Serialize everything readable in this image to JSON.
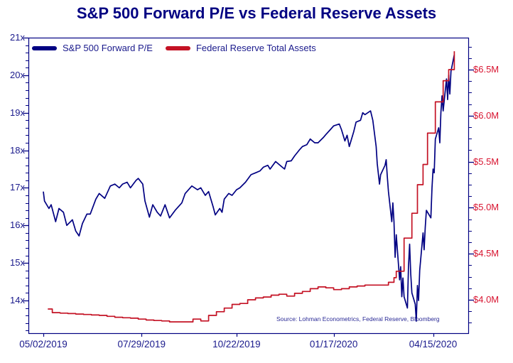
{
  "title": "S&P 500 Forward P/E vs Federal Reserve Assets",
  "source_note": "Source: Lohman Econometrics, Federal Reserve, Bloomberg",
  "colors": {
    "navy": "#000082",
    "red": "#c41224",
    "axis_text_navy": "#1a1a8c",
    "axis_text_red": "#d81430",
    "background": "#ffffff"
  },
  "legend": [
    {
      "label": "S&P 500 Forward P/E",
      "color": "#000082"
    },
    {
      "label": "Federal Reserve Total Assets",
      "color": "#c41224"
    }
  ],
  "chart_data": {
    "type": "line",
    "title": "S&P 500 Forward P/E vs Federal Reserve Assets",
    "grid": false,
    "legend_position": "top-left-inside",
    "x_axis": {
      "type": "date",
      "tick_labels": [
        "05/02/2019",
        "07/29/2019",
        "10/22/2019",
        "01/17/2020",
        "04/15/2020"
      ],
      "tick_dates": [
        "2019-05-02",
        "2019-07-29",
        "2019-10-22",
        "2020-01-17",
        "2020-04-15"
      ],
      "range": [
        "2019-04-19",
        "2020-05-17"
      ]
    },
    "y_left": {
      "series": "S&P 500 Forward P/E",
      "tick_labels": [
        "21x",
        "20x",
        "19x",
        "18x",
        "17x",
        "16x",
        "15x",
        "14x"
      ],
      "tick_values": [
        21,
        20,
        19,
        18,
        17,
        16,
        15,
        14
      ],
      "range": [
        13.1,
        21
      ],
      "minor_tick_step": 0.2
    },
    "y_right": {
      "series": "Federal Reserve Total Assets",
      "tick_labels": [
        "$6.5M",
        "$6.0M",
        "$5.5M",
        "$5.0M",
        "$4.5M",
        "$4.0M"
      ],
      "tick_values": [
        6.5,
        6.0,
        5.5,
        5.0,
        4.5,
        4.0
      ],
      "range": [
        3.63,
        6.85
      ],
      "minor_tick_step": 0.125
    },
    "series": [
      {
        "name": "S&P 500 Forward P/E",
        "axis": "left",
        "color": "#000082",
        "style": "line",
        "points": [
          [
            "2019-05-02",
            16.9
          ],
          [
            "2019-05-03",
            16.65
          ],
          [
            "2019-05-07",
            16.45
          ],
          [
            "2019-05-09",
            16.55
          ],
          [
            "2019-05-13",
            16.1
          ],
          [
            "2019-05-16",
            16.45
          ],
          [
            "2019-05-20",
            16.35
          ],
          [
            "2019-05-23",
            16.0
          ],
          [
            "2019-05-28",
            16.15
          ],
          [
            "2019-05-31",
            15.85
          ],
          [
            "2019-06-03",
            15.72
          ],
          [
            "2019-06-06",
            16.05
          ],
          [
            "2019-06-10",
            16.3
          ],
          [
            "2019-06-13",
            16.3
          ],
          [
            "2019-06-18",
            16.7
          ],
          [
            "2019-06-21",
            16.85
          ],
          [
            "2019-06-26",
            16.72
          ],
          [
            "2019-07-01",
            17.05
          ],
          [
            "2019-07-05",
            17.1
          ],
          [
            "2019-07-09",
            17.0
          ],
          [
            "2019-07-12",
            17.1
          ],
          [
            "2019-07-16",
            17.15
          ],
          [
            "2019-07-19",
            17.0
          ],
          [
            "2019-07-24",
            17.2
          ],
          [
            "2019-07-26",
            17.25
          ],
          [
            "2019-07-30",
            17.1
          ],
          [
            "2019-08-01",
            16.65
          ],
          [
            "2019-08-05",
            16.22
          ],
          [
            "2019-08-08",
            16.55
          ],
          [
            "2019-08-12",
            16.35
          ],
          [
            "2019-08-15",
            16.25
          ],
          [
            "2019-08-19",
            16.55
          ],
          [
            "2019-08-23",
            16.2
          ],
          [
            "2019-08-28",
            16.4
          ],
          [
            "2019-09-03",
            16.6
          ],
          [
            "2019-09-06",
            16.85
          ],
          [
            "2019-09-12",
            17.05
          ],
          [
            "2019-09-17",
            16.95
          ],
          [
            "2019-09-20",
            17.0
          ],
          [
            "2019-09-24",
            16.8
          ],
          [
            "2019-09-27",
            16.9
          ],
          [
            "2019-10-01",
            16.5
          ],
          [
            "2019-10-03",
            16.28
          ],
          [
            "2019-10-07",
            16.45
          ],
          [
            "2019-10-09",
            16.35
          ],
          [
            "2019-10-11",
            16.7
          ],
          [
            "2019-10-15",
            16.85
          ],
          [
            "2019-10-18",
            16.8
          ],
          [
            "2019-10-22",
            16.95
          ],
          [
            "2019-10-25",
            17.0
          ],
          [
            "2019-10-30",
            17.15
          ],
          [
            "2019-11-04",
            17.35
          ],
          [
            "2019-11-08",
            17.4
          ],
          [
            "2019-11-12",
            17.45
          ],
          [
            "2019-11-15",
            17.55
          ],
          [
            "2019-11-19",
            17.6
          ],
          [
            "2019-11-21",
            17.5
          ],
          [
            "2019-11-26",
            17.7
          ],
          [
            "2019-12-02",
            17.55
          ],
          [
            "2019-12-04",
            17.5
          ],
          [
            "2019-12-06",
            17.7
          ],
          [
            "2019-12-10",
            17.72
          ],
          [
            "2019-12-13",
            17.85
          ],
          [
            "2019-12-17",
            18.0
          ],
          [
            "2019-12-20",
            18.1
          ],
          [
            "2019-12-24",
            18.15
          ],
          [
            "2019-12-27",
            18.3
          ],
          [
            "2019-12-31",
            18.2
          ],
          [
            "2020-01-03",
            18.2
          ],
          [
            "2020-01-08",
            18.35
          ],
          [
            "2020-01-10",
            18.42
          ],
          [
            "2020-01-14",
            18.55
          ],
          [
            "2020-01-17",
            18.65
          ],
          [
            "2020-01-22",
            18.7
          ],
          [
            "2020-01-24",
            18.55
          ],
          [
            "2020-01-27",
            18.25
          ],
          [
            "2020-01-29",
            18.4
          ],
          [
            "2020-01-31",
            18.1
          ],
          [
            "2020-02-04",
            18.5
          ],
          [
            "2020-02-06",
            18.75
          ],
          [
            "2020-02-10",
            18.8
          ],
          [
            "2020-02-12",
            19.0
          ],
          [
            "2020-02-14",
            18.95
          ],
          [
            "2020-02-19",
            19.05
          ],
          [
            "2020-02-21",
            18.8
          ],
          [
            "2020-02-24",
            18.1
          ],
          [
            "2020-02-25",
            17.65
          ],
          [
            "2020-02-27",
            17.1
          ],
          [
            "2020-02-28",
            17.35
          ],
          [
            "2020-03-03",
            17.6
          ],
          [
            "2020-03-04",
            17.75
          ],
          [
            "2020-03-05",
            17.3
          ],
          [
            "2020-03-06",
            16.9
          ],
          [
            "2020-03-09",
            16.1
          ],
          [
            "2020-03-10",
            16.6
          ],
          [
            "2020-03-11",
            16.1
          ],
          [
            "2020-03-12",
            15.15
          ],
          [
            "2020-03-13",
            15.75
          ],
          [
            "2020-03-16",
            14.55
          ],
          [
            "2020-03-17",
            14.9
          ],
          [
            "2020-03-18",
            14.1
          ],
          [
            "2020-03-19",
            14.6
          ],
          [
            "2020-03-20",
            14.1
          ],
          [
            "2020-03-23",
            13.8
          ],
          [
            "2020-03-24",
            14.9
          ],
          [
            "2020-03-25",
            15.5
          ],
          [
            "2020-03-26",
            14.7
          ],
          [
            "2020-03-27",
            14.2
          ],
          [
            "2020-03-30",
            13.9
          ],
          [
            "2020-03-31",
            13.45
          ],
          [
            "2020-04-01",
            14.4
          ],
          [
            "2020-04-02",
            14.0
          ],
          [
            "2020-04-03",
            14.8
          ],
          [
            "2020-04-06",
            15.8
          ],
          [
            "2020-04-07",
            15.35
          ],
          [
            "2020-04-08",
            15.95
          ],
          [
            "2020-04-09",
            16.4
          ],
          [
            "2020-04-13",
            16.2
          ],
          [
            "2020-04-14",
            17.0
          ],
          [
            "2020-04-15",
            17.5
          ],
          [
            "2020-04-16",
            17.4
          ],
          [
            "2020-04-17",
            18.3
          ],
          [
            "2020-04-20",
            18.6
          ],
          [
            "2020-04-21",
            18.2
          ],
          [
            "2020-04-22",
            19.0
          ],
          [
            "2020-04-23",
            19.45
          ],
          [
            "2020-04-24",
            19.05
          ],
          [
            "2020-04-27",
            19.9
          ],
          [
            "2020-04-28",
            19.35
          ],
          [
            "2020-04-29",
            20.0
          ],
          [
            "2020-04-30",
            19.5
          ],
          [
            "2020-05-01",
            20.1
          ],
          [
            "2020-05-04",
            20.55
          ]
        ]
      },
      {
        "name": "Federal Reserve Total Assets",
        "axis": "right",
        "color": "#c41224",
        "style": "step",
        "points": [
          [
            "2019-05-06",
            3.9
          ],
          [
            "2019-05-10",
            3.86
          ],
          [
            "2019-05-17",
            3.855
          ],
          [
            "2019-05-24",
            3.85
          ],
          [
            "2019-05-31",
            3.845
          ],
          [
            "2019-06-07",
            3.84
          ],
          [
            "2019-06-14",
            3.835
          ],
          [
            "2019-06-21",
            3.83
          ],
          [
            "2019-06-28",
            3.82
          ],
          [
            "2019-07-05",
            3.81
          ],
          [
            "2019-07-12",
            3.805
          ],
          [
            "2019-07-19",
            3.8
          ],
          [
            "2019-07-26",
            3.79
          ],
          [
            "2019-08-02",
            3.78
          ],
          [
            "2019-08-09",
            3.775
          ],
          [
            "2019-08-16",
            3.77
          ],
          [
            "2019-08-23",
            3.76
          ],
          [
            "2019-08-30",
            3.76
          ],
          [
            "2019-09-06",
            3.76
          ],
          [
            "2019-09-13",
            3.79
          ],
          [
            "2019-09-20",
            3.77
          ],
          [
            "2019-09-27",
            3.83
          ],
          [
            "2019-10-04",
            3.87
          ],
          [
            "2019-10-11",
            3.91
          ],
          [
            "2019-10-18",
            3.95
          ],
          [
            "2019-10-25",
            3.96
          ],
          [
            "2019-11-01",
            4.0
          ],
          [
            "2019-11-08",
            4.02
          ],
          [
            "2019-11-15",
            4.03
          ],
          [
            "2019-11-22",
            4.05
          ],
          [
            "2019-11-29",
            4.06
          ],
          [
            "2019-12-06",
            4.04
          ],
          [
            "2019-12-13",
            4.07
          ],
          [
            "2019-12-20",
            4.09
          ],
          [
            "2019-12-27",
            4.12
          ],
          [
            "2020-01-03",
            4.14
          ],
          [
            "2020-01-10",
            4.13
          ],
          [
            "2020-01-17",
            4.11
          ],
          [
            "2020-01-24",
            4.12
          ],
          [
            "2020-01-31",
            4.14
          ],
          [
            "2020-02-07",
            4.15
          ],
          [
            "2020-02-14",
            4.16
          ],
          [
            "2020-02-21",
            4.16
          ],
          [
            "2020-02-28",
            4.16
          ],
          [
            "2020-03-06",
            4.19
          ],
          [
            "2020-03-11",
            4.24
          ],
          [
            "2020-03-13",
            4.31
          ],
          [
            "2020-03-20",
            4.67
          ],
          [
            "2020-03-27",
            4.94
          ],
          [
            "2020-04-01",
            5.25
          ],
          [
            "2020-04-06",
            5.47
          ],
          [
            "2020-04-10",
            5.81
          ],
          [
            "2020-04-17",
            6.15
          ],
          [
            "2020-04-24",
            6.38
          ],
          [
            "2020-04-29",
            6.5
          ],
          [
            "2020-05-04",
            6.7
          ]
        ]
      }
    ]
  }
}
